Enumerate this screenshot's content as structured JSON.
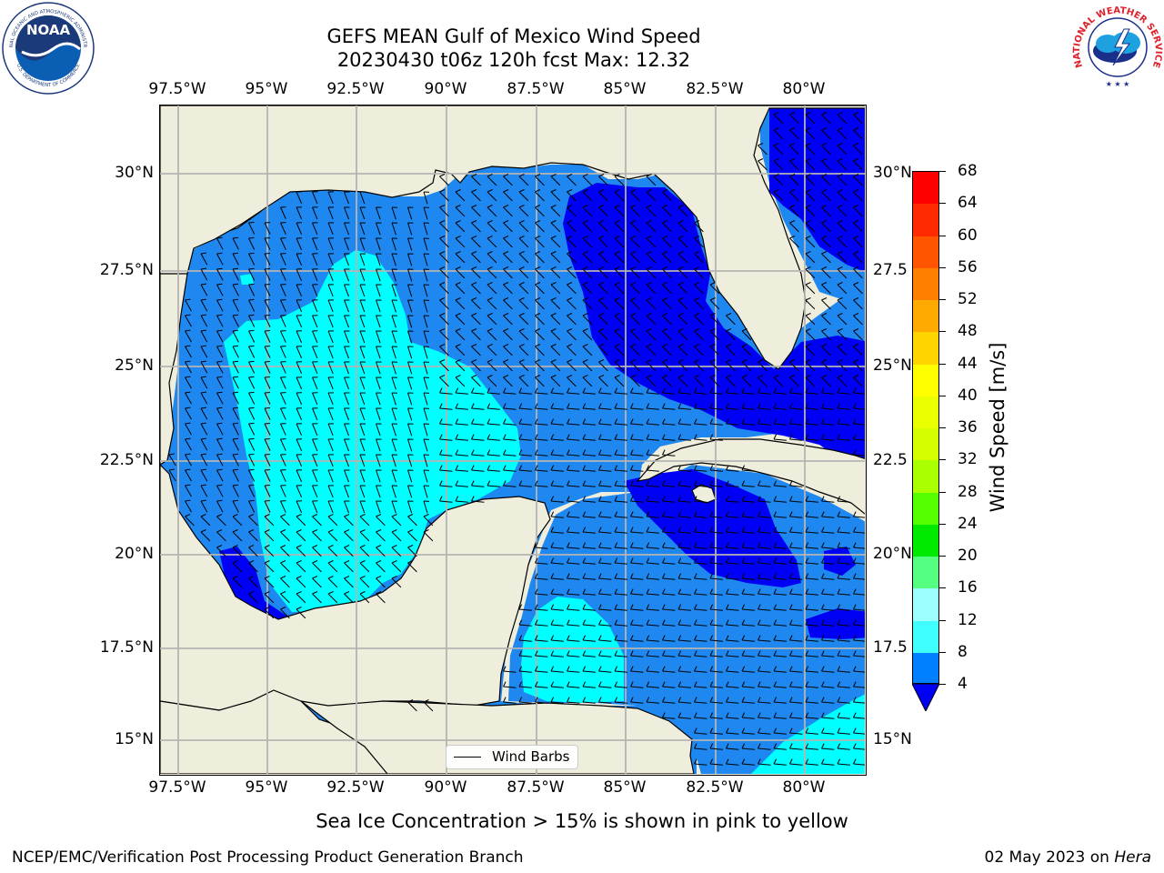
{
  "header": {
    "title_line1": "GEFS MEAN Gulf of Mexico Wind Speed",
    "title_line2": "20230430 t06z 120h fcst   Max: 12.32"
  },
  "logos": {
    "left": "noaa-logo",
    "right": "nws-logo",
    "left_text": "NATIONAL OCEANIC AND ATMOSPHERIC ADMINISTRATION",
    "left_text_bottom": "U.S. DEPARTMENT OF COMMERCE",
    "left_center": "NOAA",
    "right_text": "NATIONAL WEATHER SERVICE"
  },
  "map": {
    "lon_ticks": [
      "97.5°W",
      "95°W",
      "92.5°W",
      "90°W",
      "87.5°W",
      "85°W",
      "82.5°W",
      "80°W"
    ],
    "lat_ticks": [
      "30°N",
      "27.5°N",
      "25°N",
      "22.5°N",
      "20°N",
      "17.5°N",
      "15°N"
    ],
    "lat_ticks_right": [
      "30°N",
      "27.5",
      "25°N",
      "22.5",
      "20°N",
      "17.5",
      "15°N"
    ],
    "legend_label": "Wind Barbs",
    "colors": {
      "land": "#efeddc",
      "ws_4_8": "#1e88f0",
      "ws_below_4": "#0000f5",
      "ws_8_12": "#00ffff",
      "ws_12_16": "#40ffff",
      "gridline": "#b4b4b4"
    }
  },
  "colorbar": {
    "label": "Wind Speed [m/s]",
    "ticks": [
      "68",
      "64",
      "60",
      "56",
      "52",
      "48",
      "44",
      "40",
      "36",
      "32",
      "28",
      "24",
      "20",
      "16",
      "12",
      "8",
      "4"
    ],
    "colors": [
      "#ff0000",
      "#ff2a00",
      "#ff5500",
      "#ff8000",
      "#ffaa00",
      "#ffd500",
      "#ffff00",
      "#eaff00",
      "#d5ff00",
      "#aaff00",
      "#55ff00",
      "#00ea00",
      "#55ff7f",
      "#9effff",
      "#40ffff",
      "#00ffff",
      "#0080ff"
    ],
    "extend_color": "#0000f5"
  },
  "footer": {
    "note": "Sea Ice Concentration > 15% is shown in pink to yellow",
    "credit": "NCEP/EMC/Verification Post Processing Product Generation Branch",
    "date": "02 May 2023 on",
    "machine": "Hera"
  }
}
